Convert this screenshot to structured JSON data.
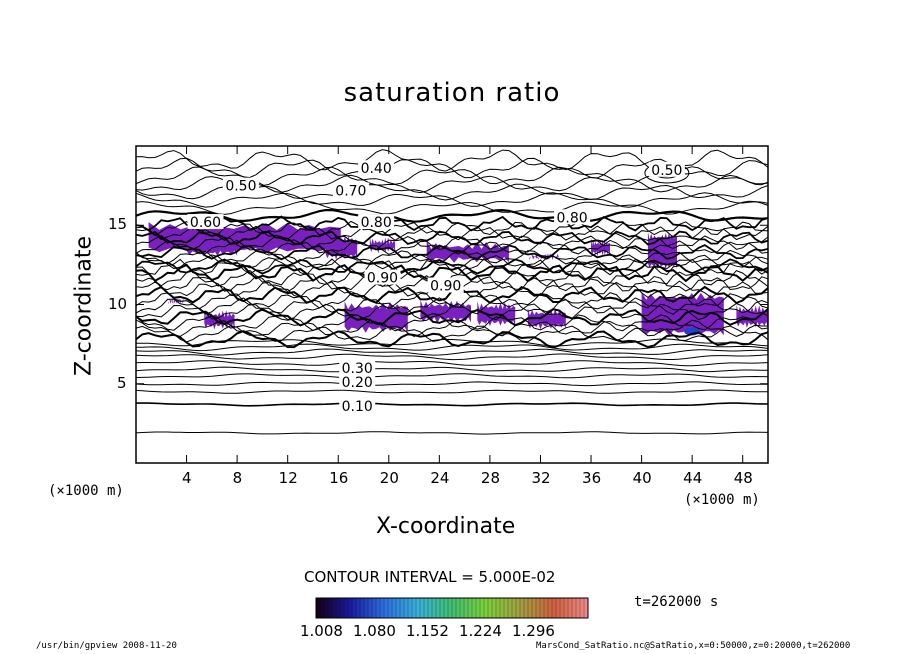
{
  "chart_data": {
    "type": "contour",
    "title": "saturation ratio",
    "xlabel": "X-coordinate",
    "ylabel": "Z-coordinate",
    "x_unit": "(×1000 m)",
    "y_unit": "(×1000 m)",
    "xlim": [
      0,
      50
    ],
    "ylim": [
      0,
      20
    ],
    "x_ticks": [
      4,
      8,
      12,
      16,
      20,
      24,
      28,
      32,
      36,
      40,
      44,
      48
    ],
    "y_ticks": [
      5,
      10,
      15
    ],
    "contour_interval": "CONTOUR INTERVAL = 5.000E-02",
    "contour_labels": [
      {
        "text": "0.10",
        "x": 17.5,
        "z": 3.6
      },
      {
        "text": "0.20",
        "x": 17.5,
        "z": 5.1
      },
      {
        "text": "0.30",
        "x": 17.5,
        "z": 6.0
      },
      {
        "text": "0.40",
        "x": 19.0,
        "z": 18.6
      },
      {
        "text": "0.50",
        "x": 8.3,
        "z": 17.5
      },
      {
        "text": "0.50",
        "x": 42.0,
        "z": 18.5
      },
      {
        "text": "0.70",
        "x": 17.0,
        "z": 17.2
      },
      {
        "text": "0.80",
        "x": 19.0,
        "z": 15.2
      },
      {
        "text": "0.80",
        "x": 34.5,
        "z": 15.5
      },
      {
        "text": "0.60",
        "x": 5.5,
        "z": 15.2
      },
      {
        "text": "0.90",
        "x": 19.5,
        "z": 11.7
      },
      {
        "text": "0.90",
        "x": 24.5,
        "z": 11.2
      }
    ],
    "colorbar": {
      "labels": [
        "1.008",
        "1.080",
        "1.152",
        "1.224",
        "1.296"
      ],
      "stops": [
        "#140014",
        "#1a1aa0",
        "#2e6fe0",
        "#3ab0d8",
        "#40c070",
        "#7ecf3a",
        "#a0a040",
        "#d06040",
        "#f08a8a"
      ]
    },
    "fill_color": "#7a1fc0",
    "time": "t=262000 s"
  },
  "footer": {
    "left": "/usr/bin/gpview  2008-11-20",
    "right": "MarsCond_SatRatio.nc@SatRatio,x=0:50000,z=0:20000,t=262000"
  }
}
